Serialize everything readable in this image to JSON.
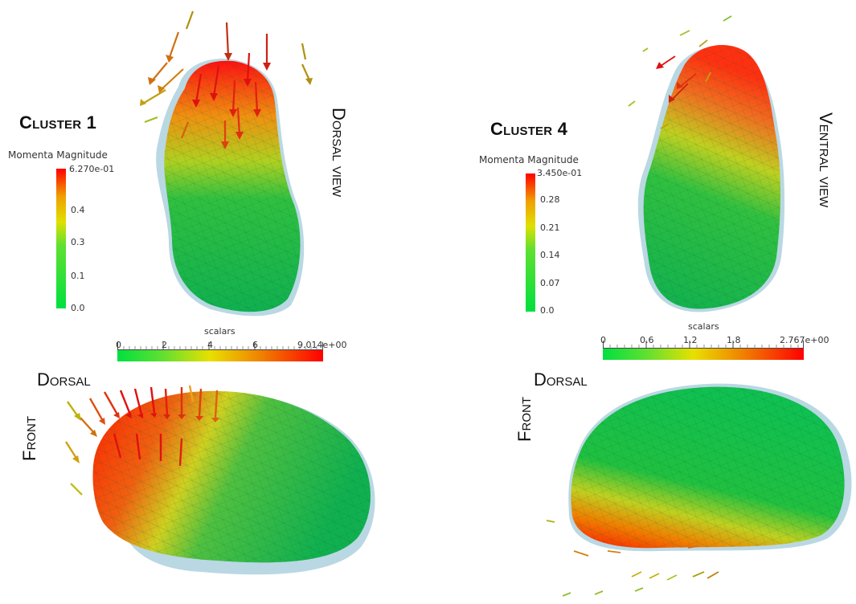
{
  "cluster1": {
    "title": "Cluster 1",
    "top_view_label": "Dorsal view",
    "side_top_label": "Dorsal",
    "side_left_label": "Front",
    "colorbar": {
      "title": "Momenta Magnitude",
      "max_label": "6.270e-01",
      "ticks": [
        "0.4",
        "0.3",
        "0.1",
        "0.0"
      ]
    },
    "scalar_bar": {
      "title": "scalars",
      "ticks": [
        "0",
        "2",
        "4",
        "6",
        "9.014e+00"
      ]
    }
  },
  "cluster4": {
    "title": "Cluster 4",
    "top_view_label": "Ventral view",
    "side_top_label": "Dorsal",
    "side_left_label": "Front",
    "colorbar": {
      "title": "Momenta Magnitude",
      "max_label": "3.450e-01",
      "ticks": [
        "0.28",
        "0.21",
        "0.14",
        "0.07",
        "0.0"
      ]
    },
    "scalar_bar": {
      "title": "scalars",
      "ticks": [
        "0",
        "0.6",
        "1.2",
        "1.8",
        "2.767e+00"
      ]
    }
  },
  "colors": {
    "low": "#00e040",
    "mid": "#f0e000",
    "high": "#ff0000",
    "mesh_outline": "#7fb8cc"
  }
}
